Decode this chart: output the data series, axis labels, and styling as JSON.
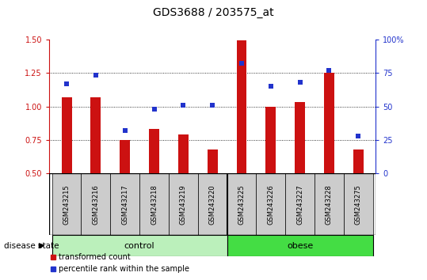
{
  "title": "GDS3688 / 203575_at",
  "samples": [
    "GSM243215",
    "GSM243216",
    "GSM243217",
    "GSM243218",
    "GSM243219",
    "GSM243220",
    "GSM243225",
    "GSM243226",
    "GSM243227",
    "GSM243228",
    "GSM243275"
  ],
  "red_values": [
    1.07,
    1.07,
    0.75,
    0.83,
    0.79,
    0.68,
    1.49,
    1.0,
    1.03,
    1.25,
    0.68
  ],
  "blue_pct": [
    67,
    73,
    32,
    48,
    51,
    51,
    82,
    65,
    68,
    77,
    28
  ],
  "n_control": 6,
  "ylim": [
    0.5,
    1.5
  ],
  "y_ticks_left": [
    0.5,
    0.75,
    1.0,
    1.25,
    1.5
  ],
  "y_ticks_right": [
    0,
    25,
    50,
    75,
    100
  ],
  "red_color": "#cc1111",
  "blue_color": "#2233cc",
  "control_color": "#bbf0bb",
  "obese_color": "#44dd44",
  "bar_bg": "#cccccc",
  "label_bar_bottom": 0.5,
  "grid_yticks": [
    0.75,
    1.0,
    1.25
  ],
  "control_label": "control",
  "obese_label": "obese",
  "legend_red": "transformed count",
  "legend_blue": "percentile rank within the sample",
  "disease_state_label": "disease state"
}
